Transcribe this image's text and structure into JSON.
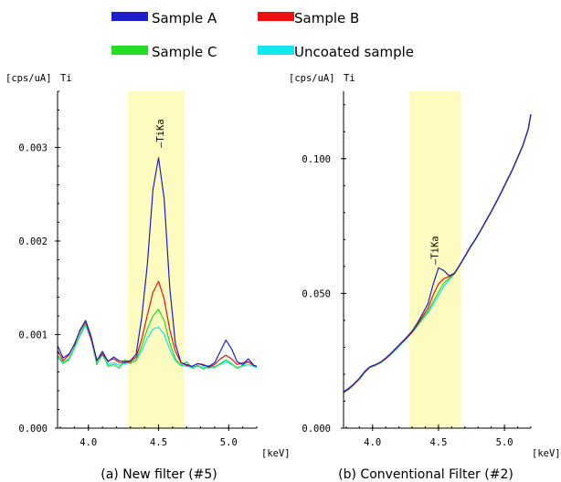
{
  "legend": [
    {
      "label": "Sample A",
      "color": "#1e1ecc"
    },
    {
      "label": "Sample B",
      "color": "#ee1111"
    },
    {
      "label": "Sample C",
      "color": "#22dd22"
    },
    {
      "label": "Uncoated sample",
      "color": "#11e8ee"
    }
  ],
  "chart_data": [
    {
      "type": "line",
      "unit_label": "[cps/uA]",
      "element_label": "Ti",
      "xlabel": "[keV]",
      "caption": "(a) New filter (#5)",
      "peak_label": "TiKa",
      "peak_x": 4.51,
      "xlim": [
        3.78,
        5.2
      ],
      "ylim": [
        0.0,
        0.0036
      ],
      "xticks": [
        4.0,
        4.5,
        5.0
      ],
      "xtick_labels": [
        "4.0",
        "4.5",
        "5.0"
      ],
      "yticks": [
        0.0,
        0.001,
        0.002,
        0.003
      ],
      "ytick_labels": [
        "0.000",
        "0.001",
        "0.002",
        "0.003"
      ],
      "highlight_band": [
        4.28,
        4.68
      ],
      "highlight_color": "#fdfbbf",
      "series": [
        {
          "name": "Sample A",
          "color": "#1e1ecc",
          "x": [
            3.78,
            3.82,
            3.86,
            3.9,
            3.94,
            3.98,
            4.02,
            4.06,
            4.1,
            4.14,
            4.18,
            4.22,
            4.26,
            4.3,
            4.34,
            4.38,
            4.42,
            4.46,
            4.5,
            4.54,
            4.58,
            4.62,
            4.66,
            4.7,
            4.74,
            4.78,
            4.82,
            4.86,
            4.9,
            4.94,
            4.98,
            5.02,
            5.06,
            5.1,
            5.14,
            5.18,
            5.2
          ],
          "y": [
            0.00088,
            0.00075,
            0.00079,
            0.00089,
            0.00105,
            0.00115,
            0.00098,
            0.00072,
            0.00082,
            0.00071,
            0.00076,
            0.00072,
            0.00071,
            0.00072,
            0.00079,
            0.00118,
            0.00175,
            0.00255,
            0.00289,
            0.00245,
            0.0015,
            0.0009,
            0.0007,
            0.00068,
            0.00066,
            0.00069,
            0.00067,
            0.00066,
            0.0007,
            0.00082,
            0.00094,
            0.00085,
            0.00071,
            0.00068,
            0.00074,
            0.00067,
            0.00066
          ]
        },
        {
          "name": "Sample B",
          "color": "#ee1111",
          "x": [
            3.78,
            3.82,
            3.86,
            3.9,
            3.94,
            3.98,
            4.02,
            4.06,
            4.1,
            4.14,
            4.18,
            4.22,
            4.26,
            4.3,
            4.34,
            4.38,
            4.42,
            4.46,
            4.5,
            4.54,
            4.58,
            4.62,
            4.66,
            4.7,
            4.74,
            4.78,
            4.82,
            4.86,
            4.9,
            4.94,
            4.98,
            5.02,
            5.06,
            5.1,
            5.14,
            5.18,
            5.2
          ],
          "y": [
            0.00083,
            0.00072,
            0.00078,
            0.0009,
            0.00104,
            0.00114,
            0.00095,
            0.00073,
            0.00079,
            0.00072,
            0.00074,
            0.0007,
            0.0007,
            0.00071,
            0.00076,
            0.00095,
            0.00121,
            0.00145,
            0.00157,
            0.00138,
            0.00105,
            0.00082,
            0.0007,
            0.00067,
            0.00066,
            0.00069,
            0.00068,
            0.00065,
            0.00068,
            0.00074,
            0.00078,
            0.00074,
            0.00068,
            0.0007,
            0.00071,
            0.00067,
            0.00066
          ]
        },
        {
          "name": "Sample C",
          "color": "#22dd22",
          "x": [
            3.78,
            3.82,
            3.86,
            3.9,
            3.94,
            3.98,
            4.02,
            4.06,
            4.1,
            4.14,
            4.18,
            4.22,
            4.26,
            4.3,
            4.34,
            4.38,
            4.42,
            4.46,
            4.5,
            4.54,
            4.58,
            4.62,
            4.66,
            4.7,
            4.74,
            4.78,
            4.82,
            4.86,
            4.9,
            4.94,
            4.98,
            5.02,
            5.06,
            5.1,
            5.14,
            5.18,
            5.2
          ],
          "y": [
            0.00078,
            0.0007,
            0.00074,
            0.00086,
            0.001,
            0.00112,
            0.00096,
            0.00068,
            0.0008,
            0.00066,
            0.00068,
            0.00064,
            0.00073,
            0.00069,
            0.00073,
            0.00088,
            0.00106,
            0.0012,
            0.00127,
            0.00115,
            0.00091,
            0.00074,
            0.00067,
            0.00071,
            0.00064,
            0.00067,
            0.00063,
            0.00067,
            0.00065,
            0.00069,
            0.00073,
            0.00069,
            0.00064,
            0.00067,
            0.00071,
            0.00066,
            0.00066
          ]
        },
        {
          "name": "Uncoated sample",
          "color": "#11e8ee",
          "x": [
            3.78,
            3.82,
            3.86,
            3.9,
            3.94,
            3.98,
            4.02,
            4.06,
            4.1,
            4.14,
            4.18,
            4.22,
            4.26,
            4.3,
            4.34,
            4.38,
            4.42,
            4.46,
            4.5,
            4.54,
            4.58,
            4.62,
            4.66,
            4.7,
            4.74,
            4.78,
            4.82,
            4.86,
            4.9,
            4.94,
            4.98,
            5.02,
            5.06,
            5.1,
            5.14,
            5.18,
            5.2
          ],
          "y": [
            0.00076,
            0.00069,
            0.00073,
            0.00085,
            0.00099,
            0.0011,
            0.00094,
            0.00069,
            0.00078,
            0.00068,
            0.0007,
            0.00067,
            0.00069,
            0.0007,
            0.00072,
            0.00083,
            0.00096,
            0.00106,
            0.00108,
            0.001,
            0.00084,
            0.00072,
            0.00067,
            0.00066,
            0.00065,
            0.00066,
            0.00065,
            0.00064,
            0.00066,
            0.00068,
            0.00071,
            0.00068,
            0.00065,
            0.00066,
            0.00068,
            0.00066,
            0.00065
          ]
        }
      ]
    },
    {
      "type": "line",
      "unit_label": "[cps/uA]",
      "element_label": "Ti",
      "xlabel": "[keV]",
      "caption": "(b) Conventional Filter (#2)",
      "peak_label": "TiKa",
      "peak_x": 4.47,
      "xlim": [
        3.78,
        5.2
      ],
      "ylim": [
        0.0,
        0.125
      ],
      "xticks": [
        4.0,
        4.5,
        5.0
      ],
      "xtick_labels": [
        "4.0",
        "4.5",
        "5.0"
      ],
      "yticks": [
        0.0,
        0.05,
        0.1
      ],
      "ytick_labels": [
        "0.000",
        "0.050",
        "0.100"
      ],
      "highlight_band": [
        4.28,
        4.67
      ],
      "highlight_color": "#fdfbbf",
      "series": [
        {
          "name": "Sample A",
          "color": "#1e1ecc",
          "x": [
            3.78,
            3.82,
            3.86,
            3.9,
            3.94,
            3.98,
            4.02,
            4.06,
            4.1,
            4.14,
            4.18,
            4.22,
            4.26,
            4.3,
            4.34,
            4.38,
            4.42,
            4.46,
            4.5,
            4.54,
            4.58,
            4.62,
            4.66,
            4.7,
            4.74,
            4.78,
            4.82,
            4.86,
            4.9,
            4.94,
            4.98,
            5.02,
            5.06,
            5.1,
            5.14,
            5.18,
            5.2
          ],
          "y": [
            0.0135,
            0.0148,
            0.0165,
            0.0185,
            0.021,
            0.0228,
            0.0235,
            0.0245,
            0.026,
            0.0278,
            0.0298,
            0.0318,
            0.0338,
            0.036,
            0.039,
            0.0425,
            0.0462,
            0.0535,
            0.0595,
            0.0585,
            0.0565,
            0.0575,
            0.0605,
            0.0638,
            0.0672,
            0.0702,
            0.0735,
            0.077,
            0.0805,
            0.0842,
            0.088,
            0.092,
            0.096,
            0.1005,
            0.105,
            0.111,
            0.1165
          ]
        },
        {
          "name": "Sample B",
          "color": "#ee1111",
          "x": [
            3.78,
            3.82,
            3.86,
            3.9,
            3.94,
            3.98,
            4.02,
            4.06,
            4.1,
            4.14,
            4.18,
            4.22,
            4.26,
            4.3,
            4.34,
            4.38,
            4.42,
            4.46,
            4.5,
            4.54,
            4.58,
            4.62,
            4.66,
            4.7,
            4.74,
            4.78,
            4.82,
            4.86,
            4.9,
            4.94,
            4.98,
            5.02,
            5.06,
            5.1,
            5.14,
            5.18,
            5.2
          ],
          "y": [
            0.0133,
            0.0146,
            0.0163,
            0.0183,
            0.0208,
            0.0227,
            0.0234,
            0.0244,
            0.0258,
            0.0276,
            0.0296,
            0.0316,
            0.0336,
            0.0357,
            0.0385,
            0.0415,
            0.0445,
            0.0495,
            0.0535,
            0.0555,
            0.0562,
            0.0574,
            0.0604,
            0.0637,
            0.0671,
            0.0701,
            0.0734,
            0.0769,
            0.0804,
            0.0841,
            0.0879,
            0.0919,
            0.0959,
            0.1004,
            0.1049,
            0.1109,
            0.1164
          ]
        },
        {
          "name": "Sample C",
          "color": "#22dd22",
          "x": [
            3.78,
            3.82,
            3.86,
            3.9,
            3.94,
            3.98,
            4.02,
            4.06,
            4.1,
            4.14,
            4.18,
            4.22,
            4.26,
            4.3,
            4.34,
            4.38,
            4.42,
            4.46,
            4.5,
            4.54,
            4.58,
            4.62,
            4.66,
            4.7,
            4.74,
            4.78,
            4.82,
            4.86,
            4.9,
            4.94,
            4.98,
            5.02,
            5.06,
            5.1,
            5.14,
            5.18,
            5.2
          ],
          "y": [
            0.0131,
            0.0144,
            0.0161,
            0.0181,
            0.0206,
            0.0225,
            0.0232,
            0.0242,
            0.0256,
            0.0274,
            0.0293,
            0.0313,
            0.0333,
            0.0354,
            0.038,
            0.0408,
            0.0434,
            0.047,
            0.0505,
            0.0538,
            0.0556,
            0.0572,
            0.0602,
            0.0635,
            0.0669,
            0.0699,
            0.0732,
            0.0767,
            0.0802,
            0.0839,
            0.0877,
            0.0917,
            0.0957,
            0.1002,
            0.1047,
            0.1107,
            0.1162
          ]
        },
        {
          "name": "Uncoated sample",
          "color": "#11e8ee",
          "x": [
            3.78,
            3.82,
            3.86,
            3.9,
            3.94,
            3.98,
            4.02,
            4.06,
            4.1,
            4.14,
            4.18,
            4.22,
            4.26,
            4.3,
            4.34,
            4.38,
            4.42,
            4.46,
            4.5,
            4.54,
            4.58,
            4.62,
            4.66,
            4.7,
            4.74,
            4.78,
            4.82,
            4.86,
            4.9,
            4.94,
            4.98,
            5.02,
            5.06,
            5.1,
            5.14,
            5.18,
            5.2
          ],
          "y": [
            0.0132,
            0.0145,
            0.0162,
            0.0182,
            0.0207,
            0.0226,
            0.0233,
            0.0243,
            0.0257,
            0.0275,
            0.0294,
            0.0314,
            0.0334,
            0.0355,
            0.0378,
            0.0404,
            0.0428,
            0.046,
            0.0492,
            0.0525,
            0.055,
            0.0571,
            0.0603,
            0.0636,
            0.067,
            0.07,
            0.0733,
            0.0768,
            0.0803,
            0.084,
            0.0878,
            0.0918,
            0.0958,
            0.1003,
            0.1048,
            0.1108,
            0.1163
          ]
        }
      ]
    }
  ]
}
